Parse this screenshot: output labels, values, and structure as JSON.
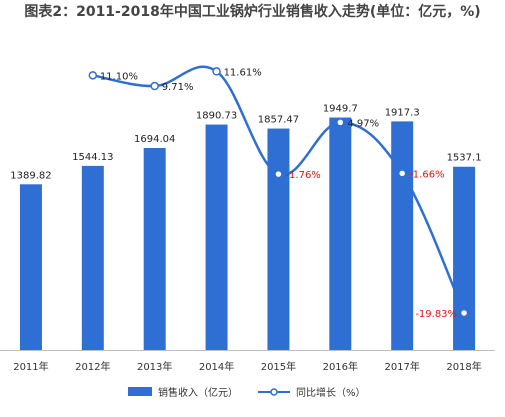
{
  "chart_data": {
    "type": "bar",
    "title": "图表2：2011-2018年中国工业锅炉行业销售收入走势(单位：亿元，%)",
    "categories": [
      "2011年",
      "2012年",
      "2013年",
      "2014年",
      "2015年",
      "2016年",
      "2017年",
      "2018年"
    ],
    "series": [
      {
        "name": "销售收入（亿元）",
        "type": "bar",
        "color": "#2f6fd3",
        "values": [
          1389.82,
          1544.13,
          1694.04,
          1890.73,
          1857.47,
          1949.7,
          1917.3,
          1537.1
        ],
        "labels": [
          "1389.82",
          "1544.13",
          "1694.04",
          "1890.73",
          "1857.47",
          "1949.7",
          "1917.3",
          "1537.1"
        ]
      },
      {
        "name": "同比增长（%）",
        "type": "line",
        "color": "#2f6fd3",
        "values": [
          null,
          11.1,
          9.71,
          11.61,
          -1.76,
          4.97,
          -1.66,
          -19.83
        ],
        "labels": [
          "",
          "11.10%",
          "9.71%",
          "11.61%",
          "-1.76%",
          "4.97%",
          "-1.66%",
          "-19.83%"
        ]
      }
    ],
    "bar_ylim": [
      0,
      2600
    ],
    "line_ylim": [
      -24,
      17
    ],
    "grid": false,
    "legend_position": "bottom"
  }
}
